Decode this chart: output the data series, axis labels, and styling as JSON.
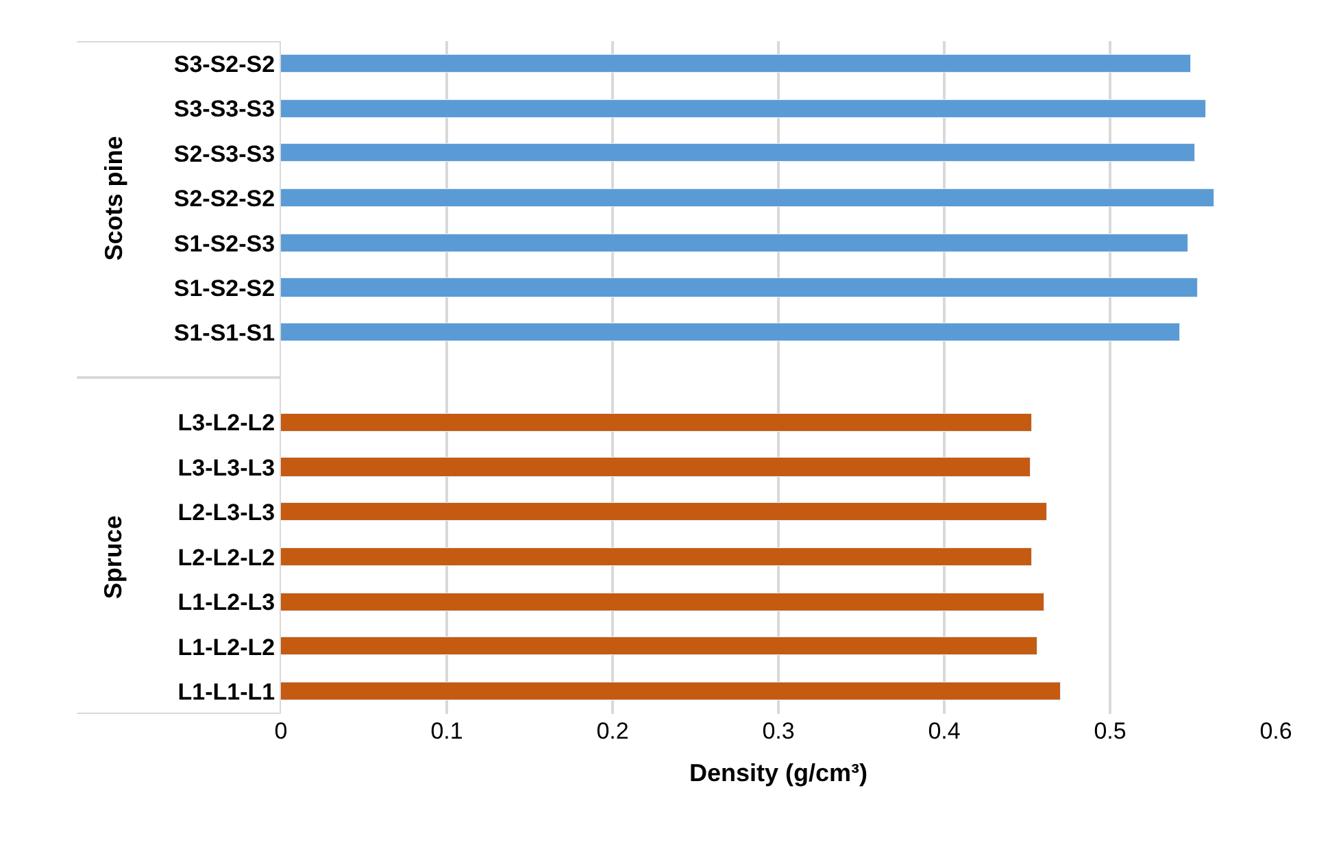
{
  "chart_data": {
    "type": "bar",
    "orientation": "horizontal",
    "xlabel": "Density (g/cm³)",
    "categories": [
      "S3-S2-S2",
      "S3-S3-S3",
      "S2-S3-S3",
      "S2-S2-S2",
      "S1-S2-S3",
      "S1-S2-S2",
      "S1-S1-S1",
      null,
      "L3-L2-L2",
      "L3-L3-L3",
      "L2-L3-L3",
      "L2-L2-L2",
      "L1-L2-L3",
      "L1-L2-L2",
      "L1-L1-L1"
    ],
    "values": [
      0.549,
      0.558,
      0.551,
      0.563,
      0.547,
      0.553,
      0.542,
      null,
      0.453,
      0.452,
      0.462,
      0.453,
      0.46,
      0.456,
      0.47
    ],
    "colors": [
      "#5b9bd5",
      "#5b9bd5",
      "#5b9bd5",
      "#5b9bd5",
      "#5b9bd5",
      "#5b9bd5",
      "#5b9bd5",
      null,
      "#c55a11",
      "#c55a11",
      "#c55a11",
      "#c55a11",
      "#c55a11",
      "#c55a11",
      "#c55a11"
    ],
    "annotations": [
      "Scots pine",
      "Spruce"
    ],
    "xlim": [
      0,
      0.6
    ],
    "xticks": [
      0,
      0.1,
      0.2,
      0.3,
      0.4,
      0.5,
      0.6
    ],
    "grid": "x",
    "legend": false
  }
}
